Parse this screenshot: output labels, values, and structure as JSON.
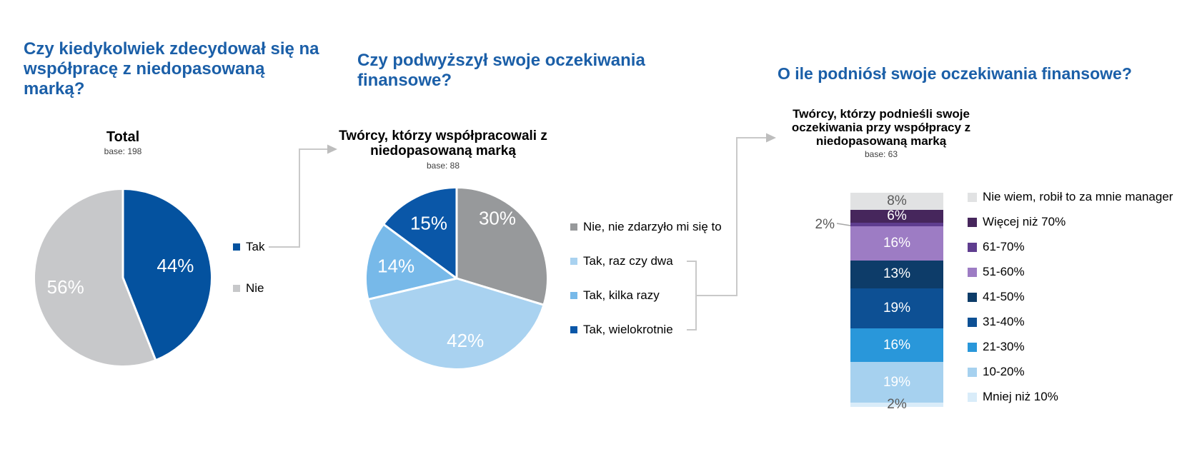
{
  "colors": {
    "title_blue": "#1b5fa8",
    "connector_grey": "#c9c9c9",
    "callout_text_grey": "#595959"
  },
  "chart_data": [
    {
      "type": "pie",
      "title": "Czy kiedykolwiek zdecydował się na współpracę z niedopasowaną marką?",
      "subtitle": "Total",
      "base_label": "base: 198",
      "slices": [
        {
          "label": "Tak",
          "value": 44,
          "color": "#04529f",
          "text_color": "#ffffff"
        },
        {
          "label": "Nie",
          "value": 56,
          "color": "#c7c8ca",
          "text_color": "#ffffff"
        }
      ]
    },
    {
      "type": "pie",
      "title": "Czy podwyższył swoje oczekiwania finansowe?",
      "subtitle": "Twórcy, którzy współpracowali z niedopasowaną marką",
      "base_label": "base: 88",
      "slices": [
        {
          "label": "Nie, nie zdarzyło mi się to",
          "value": 30,
          "color": "#97999b",
          "text_color": "#ffffff"
        },
        {
          "label": "Tak, raz czy dwa",
          "value": 42,
          "color": "#a9d2f0",
          "text_color": "#ffffff"
        },
        {
          "label": "Tak, kilka razy",
          "value": 14,
          "color": "#77b9e9",
          "text_color": "#ffffff"
        },
        {
          "label": "Tak, wielokrotnie",
          "value": 15,
          "color": "#0a57a8",
          "text_color": "#ffffff"
        }
      ]
    },
    {
      "type": "stacked-bar",
      "title": "O ile podniósł swoje oczekiwania finansowe?",
      "subtitle": "Twórcy, którzy podnieśli swoje oczekiwania przy współpracy z niedopasowaną marką",
      "base_label": "base: 63",
      "segments": [
        {
          "label": "Nie wiem, robił to za mnie manager",
          "value": 8,
          "color": "#e1e2e3",
          "text_color": "#595959"
        },
        {
          "label": "Więcej niż 70%",
          "value": 6,
          "color": "#46265c",
          "text_color": "#ffffff"
        },
        {
          "label": "61-70%",
          "value": 2,
          "color": "#5f3d8f",
          "callout": true
        },
        {
          "label": "51-60%",
          "value": 16,
          "color": "#9d7cc4",
          "text_color": "#ffffff"
        },
        {
          "label": "41-50%",
          "value": 13,
          "color": "#0d3c69",
          "text_color": "#ffffff"
        },
        {
          "label": "31-40%",
          "value": 19,
          "color": "#0d5094",
          "text_color": "#ffffff"
        },
        {
          "label": "21-30%",
          "value": 16,
          "color": "#2997da",
          "text_color": "#ffffff"
        },
        {
          "label": "10-20%",
          "value": 19,
          "color": "#a6d1ef",
          "text_color": "#ffffff"
        },
        {
          "label": "Mniej niż 10%",
          "value": 2,
          "color": "#d9ecf9",
          "text_color": "#595959"
        }
      ]
    }
  ]
}
